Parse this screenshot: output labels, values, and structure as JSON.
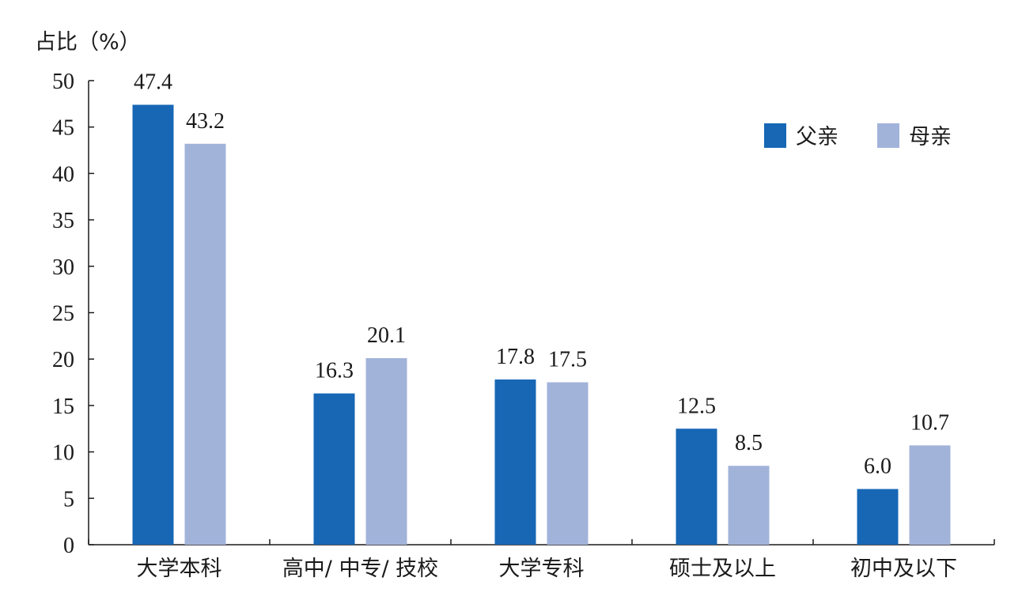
{
  "chart_data": {
    "type": "bar",
    "ylabel": "占比（%）",
    "xlabel": "",
    "ylim": [
      0,
      50
    ],
    "yticks": [
      0,
      5,
      10,
      15,
      20,
      25,
      30,
      35,
      40,
      45,
      50
    ],
    "categories": [
      "大学本科",
      "高中/ 中专/ 技校",
      "大学专科",
      "硕士及以上",
      "初中及以下"
    ],
    "series": [
      {
        "name": "父亲",
        "color": "#1767b5",
        "values": [
          47.4,
          16.3,
          17.8,
          12.5,
          6.0
        ],
        "labels": [
          "47.4",
          "16.3",
          "17.8",
          "12.5",
          "6.0"
        ]
      },
      {
        "name": "母亲",
        "color": "#a2b3da",
        "values": [
          43.2,
          20.1,
          17.5,
          8.5,
          10.7
        ],
        "labels": [
          "43.2",
          "20.1",
          "17.5",
          "8.5",
          "10.7"
        ]
      }
    ],
    "legend_position": "top-right",
    "grid": false
  }
}
